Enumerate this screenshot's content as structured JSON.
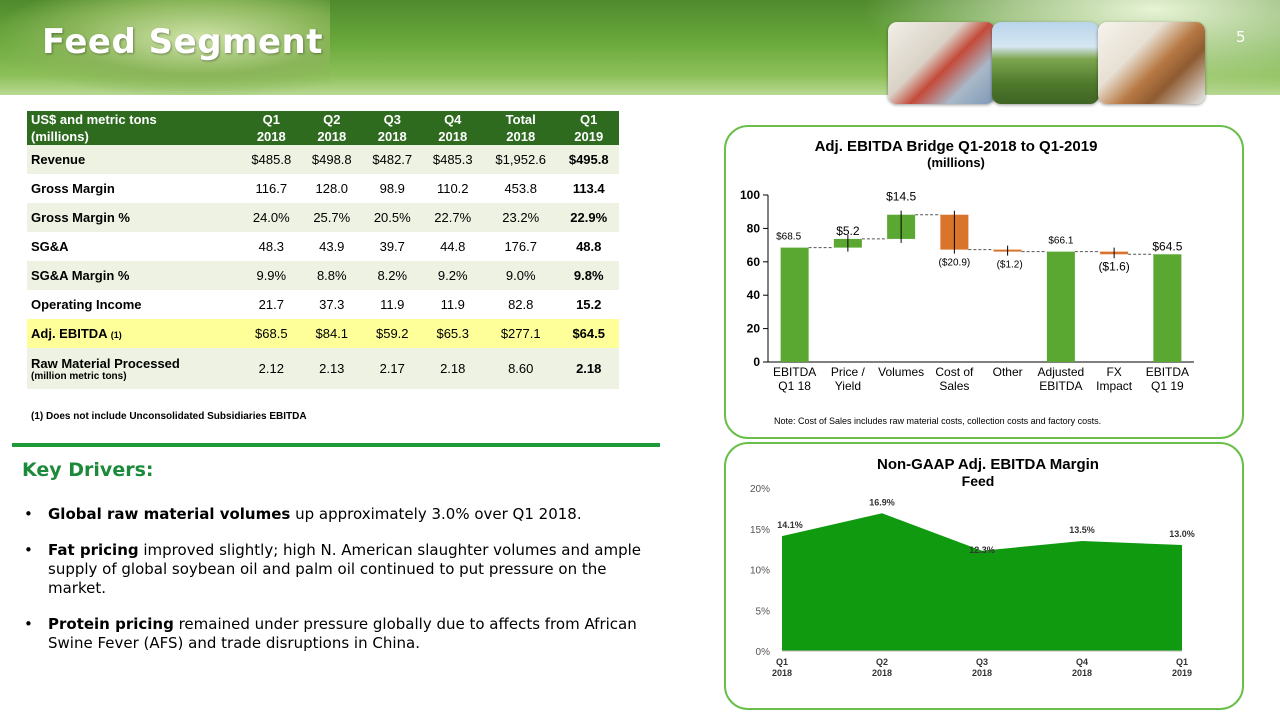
{
  "page": {
    "title": "Feed Segment",
    "page_number": "5"
  },
  "table": {
    "header_line1": [
      "US$ and metric tons",
      "Q1",
      "Q2",
      "Q3",
      "Q4",
      "Total",
      "Q1"
    ],
    "header_line2": [
      "(millions)",
      "2018",
      "2018",
      "2018",
      "2018",
      "2018",
      "2019"
    ],
    "rows": [
      {
        "label": "Revenue",
        "values": [
          "$485.8",
          "$498.8",
          "$482.7",
          "$485.3",
          "$1,952.6",
          "$495.8"
        ]
      },
      {
        "label": "Gross Margin",
        "values": [
          "116.7",
          "128.0",
          "98.9",
          "110.2",
          "453.8",
          "113.4"
        ]
      },
      {
        "label": "Gross Margin %",
        "values": [
          "24.0%",
          "25.7%",
          "20.5%",
          "22.7%",
          "23.2%",
          "22.9%"
        ]
      },
      {
        "label": "SG&A",
        "values": [
          "48.3",
          "43.9",
          "39.7",
          "44.8",
          "176.7",
          "48.8"
        ]
      },
      {
        "label": "SG&A Margin %",
        "values": [
          "9.9%",
          "8.8%",
          "8.2%",
          "9.2%",
          "9.0%",
          "9.8%"
        ]
      },
      {
        "label": "Operating Income",
        "values": [
          "21.7",
          "37.3",
          "11.9",
          "11.9",
          "82.8",
          "15.2"
        ]
      },
      {
        "label": "Adj. EBITDA",
        "label_note": "(1)",
        "values": [
          "$68.5",
          "$84.1",
          "$59.2",
          "$65.3",
          "$277.1",
          "$64.5"
        ]
      },
      {
        "label": "Raw Material Processed",
        "label_sub": "(million metric tons)",
        "values": [
          "2.12",
          "2.13",
          "2.17",
          "2.18",
          "8.60",
          "2.18"
        ]
      }
    ],
    "footnote": "(1) Does not include Unconsolidated Subsidiaries EBITDA"
  },
  "key_drivers": {
    "title": "Key Drivers:",
    "bullet_char": "•",
    "bullets": [
      {
        "bold": "Global raw material volumes",
        "rest": " up approximately 3.0% over Q1 2018."
      },
      {
        "bold": "Fat pricing",
        "rest": " improved slightly; high N. American slaughter volumes and ample supply of global soybean oil and palm oil continued to put pressure on the market."
      },
      {
        "bold": "Protein pricing",
        "rest": " remained under pressure globally due to affects from African Swine Fever (AFS) and trade disruptions in China."
      }
    ]
  },
  "chart_data": [
    {
      "type": "bar",
      "subtype": "waterfall",
      "title": "Adj. EBITDA Bridge Q1-2018 to Q1-2019",
      "subtitle": "(millions)",
      "categories": [
        [
          "EBITDA",
          "Q1 18"
        ],
        [
          "Price /",
          "Yield"
        ],
        [
          "Volumes"
        ],
        [
          "Cost of",
          "Sales"
        ],
        [
          "Other"
        ],
        [
          "Adjusted",
          "EBITDA"
        ],
        [
          "FX",
          "Impact"
        ],
        [
          "EBITDA",
          "Q1 19"
        ]
      ],
      "steps": [
        {
          "kind": "total",
          "value": 68.5,
          "label": "$68.5"
        },
        {
          "kind": "delta",
          "value": 5.2,
          "label": "$5.2"
        },
        {
          "kind": "delta",
          "value": 14.5,
          "label": "$14.5"
        },
        {
          "kind": "delta",
          "value": -20.9,
          "label": "($20.9)"
        },
        {
          "kind": "delta",
          "value": -1.2,
          "label": "($1.2)"
        },
        {
          "kind": "total",
          "value": 66.1,
          "label": "$66.1"
        },
        {
          "kind": "delta",
          "value": -1.6,
          "label": "($1.6)"
        },
        {
          "kind": "total",
          "value": 64.5,
          "label": "$64.5"
        }
      ],
      "ylim": [
        0,
        100
      ],
      "yticks": [
        0,
        20,
        40,
        60,
        80,
        100
      ],
      "colors": {
        "total": "#5aa832",
        "increase": "#5aa832",
        "decrease": "#d9742b"
      },
      "note": "Note: Cost of Sales includes raw material costs, collection costs and factory costs."
    },
    {
      "type": "area",
      "title": "Non-GAAP Adj. EBITDA Margin",
      "subtitle": "Feed",
      "categories": [
        [
          "Q1",
          "2018"
        ],
        [
          "Q2",
          "2018"
        ],
        [
          "Q3",
          "2018"
        ],
        [
          "Q4",
          "2018"
        ],
        [
          "Q1",
          "2019"
        ]
      ],
      "values": [
        14.1,
        16.9,
        12.3,
        13.5,
        13.0
      ],
      "labels": [
        "14.1%",
        "16.9%",
        "12.3%",
        "13.5%",
        "13.0%"
      ],
      "ylim": [
        0,
        20
      ],
      "yticks": [
        "0%",
        "5%",
        "10%",
        "15%",
        "20%"
      ],
      "colors": {
        "fill": "#0f9a0f"
      }
    }
  ]
}
